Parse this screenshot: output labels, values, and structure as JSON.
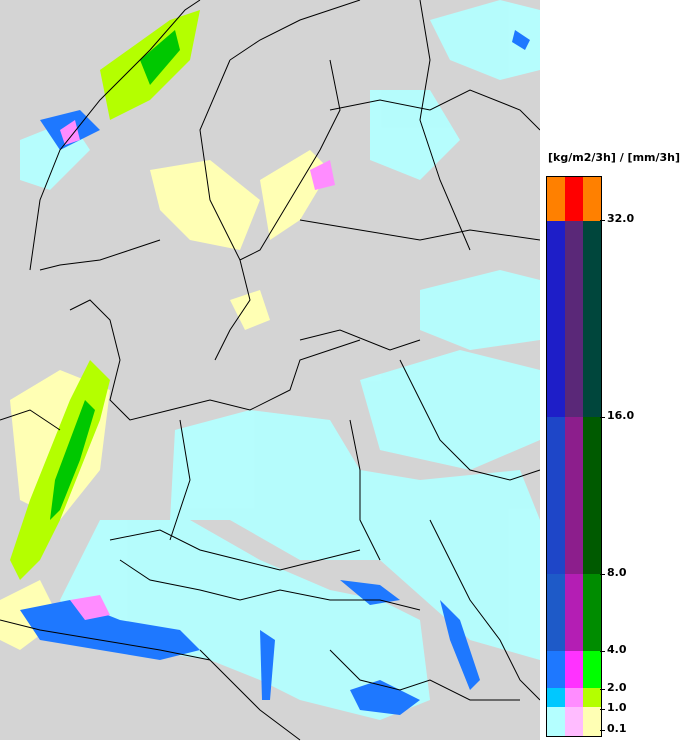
{
  "legend": {
    "unit_label": "[kg/m2/3h] / [mm/3h]",
    "ticks": [
      "32.0",
      "16.0",
      "8.0",
      "4.0",
      "2.0",
      "1.0",
      "0.1"
    ],
    "tick_values": [
      32.0,
      16.0,
      8.0,
      4.0,
      2.0,
      1.0,
      0.1
    ],
    "columns": [
      [
        "#ff8000",
        "#1e1ec8",
        "#1e46c8",
        "#1e5ac8",
        "#1e78ff",
        "#00c8ff",
        "#b4ffff"
      ],
      [
        "#ff0000",
        "#5a2878",
        "#8c1e8c",
        "#b41eb4",
        "#ff32ff",
        "#ff8cff",
        "#ffbcff"
      ],
      [
        "#ff8000",
        "#00463c",
        "#005a00",
        "#008c00",
        "#00ff00",
        "#b4ff00",
        "#ffffb4"
      ]
    ]
  },
  "map": {
    "background": "#d4d4d4",
    "border_color": "#000000"
  }
}
